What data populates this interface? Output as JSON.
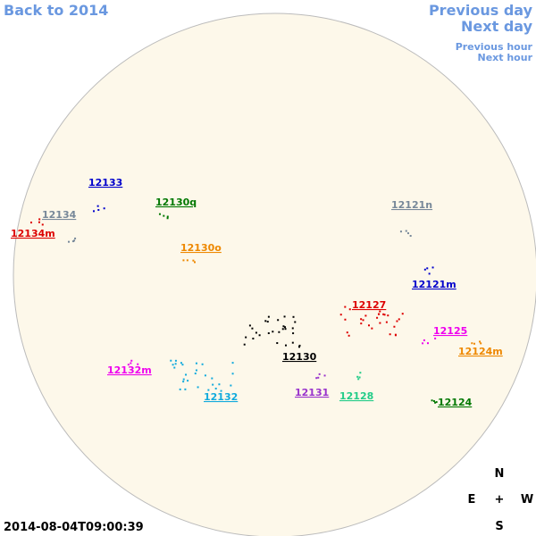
{
  "nav": {
    "back": "Back to 2014",
    "previous_day": "Previous day",
    "next_day": "Next day",
    "previous_hour": "Previous hour",
    "next_hour": "Next hour"
  },
  "regions": [
    {
      "label": "12133",
      "color": "#0000cc"
    },
    {
      "label": "12134",
      "color": "#778899"
    },
    {
      "label": "12134m",
      "color": "#dd0000"
    },
    {
      "label": "12130q",
      "color": "#007700"
    },
    {
      "label": "12130o",
      "color": "#ee8800"
    },
    {
      "label": "12121n",
      "color": "#778899"
    },
    {
      "label": "12121m",
      "color": "#0000cc"
    },
    {
      "label": "12127",
      "color": "#dd0000"
    },
    {
      "label": "12125",
      "color": "#ee00ee"
    },
    {
      "label": "12124m",
      "color": "#ee8800"
    },
    {
      "label": "12132m",
      "color": "#ee00ee"
    },
    {
      "label": "12130",
      "color": "#000000"
    },
    {
      "label": "12131",
      "color": "#9933cc"
    },
    {
      "label": "12128",
      "color": "#22cc88"
    },
    {
      "label": "12132",
      "color": "#11aadd"
    },
    {
      "label": "12124",
      "color": "#007700"
    }
  ],
  "compass": {
    "north": "N",
    "east": "E",
    "center": "+",
    "west": "W",
    "south": "S"
  },
  "timestamp": "2014-08-04T09:00:39"
}
